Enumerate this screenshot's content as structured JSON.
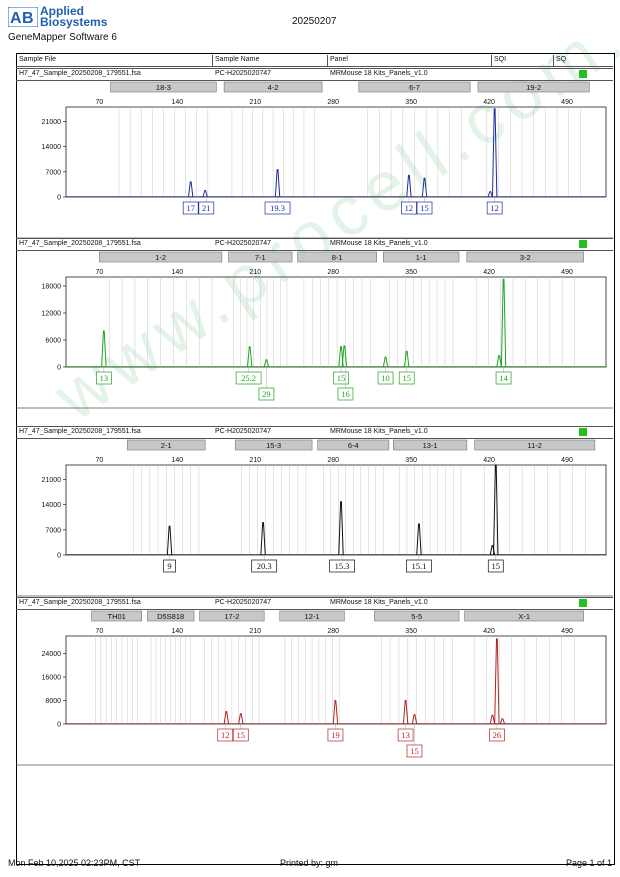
{
  "header": {
    "brand_line1": "Applied",
    "brand_line2": "Biosystems",
    "software": "GeneMapper Software 6",
    "run_date": "20250207"
  },
  "columns": [
    "Sample File",
    "Sample Name",
    "Panel",
    "SQI",
    "SQ"
  ],
  "footer": {
    "printed_at": "Mon Feb 10,2025 02:23PM, CST",
    "printed_by": "Printed by: gm",
    "page": "Page 1 of 1"
  },
  "watermark": "www.procell.com.cn",
  "colors": {
    "blue": "#1f2d9a",
    "green": "#1ea31e",
    "black": "#111111",
    "red": "#b32424",
    "sq_ok": "#22c022"
  },
  "chart_data": [
    {
      "type": "line",
      "sample_file": "H7_47_Sample_20250208_179551.fsa",
      "sample_name": "PC-H2025020747",
      "panel": "MRMouse 18 Kits_Panels_v1.0",
      "color": "#1f2d9a",
      "xlim": [
        40,
        525
      ],
      "x_ticks": [
        70,
        140,
        210,
        280,
        350,
        420,
        490
      ],
      "ylim": [
        0,
        25000
      ],
      "y_ticks": [
        0,
        7000,
        14000,
        21000
      ],
      "markers": [
        {
          "label": "18-3",
          "x0": 80,
          "x1": 175
        },
        {
          "label": "4-2",
          "x0": 182,
          "x1": 270
        },
        {
          "label": "6-7",
          "x0": 303,
          "x1": 403
        },
        {
          "label": "19-2",
          "x0": 410,
          "x1": 510
        }
      ],
      "peaks": [
        {
          "x": 152,
          "h": 4200
        },
        {
          "x": 165,
          "h": 1800
        },
        {
          "x": 230,
          "h": 7600
        },
        {
          "x": 348,
          "h": 6000
        },
        {
          "x": 362,
          "h": 5200
        },
        {
          "x": 425,
          "h": 24500
        },
        {
          "x": 421,
          "h": 1500
        }
      ],
      "alleles": [
        {
          "label": "17",
          "x": 152,
          "row": 0
        },
        {
          "label": "21",
          "x": 166,
          "row": 0
        },
        {
          "label": "19.3",
          "x": 230,
          "row": 0
        },
        {
          "label": "12",
          "x": 348,
          "row": 0
        },
        {
          "label": "15",
          "x": 362,
          "row": 0
        },
        {
          "label": "12",
          "x": 425,
          "row": 0
        }
      ]
    },
    {
      "type": "line",
      "sample_file": "H7_47_Sample_20250208_179551.fsa",
      "sample_name": "PC-H2025020747",
      "panel": "MRMouse 18 Kits_Panels_v1.0",
      "color": "#1ea31e",
      "xlim": [
        40,
        525
      ],
      "x_ticks": [
        70,
        140,
        210,
        280,
        350,
        420,
        490
      ],
      "ylim": [
        0,
        20000
      ],
      "y_ticks": [
        0,
        6000,
        12000,
        18000
      ],
      "markers": [
        {
          "label": "1-2",
          "x0": 70,
          "x1": 180
        },
        {
          "label": "7-1",
          "x0": 186,
          "x1": 243
        },
        {
          "label": "8-1",
          "x0": 248,
          "x1": 319
        },
        {
          "label": "1-1",
          "x0": 325,
          "x1": 393
        },
        {
          "label": "3-2",
          "x0": 400,
          "x1": 505
        }
      ],
      "peaks": [
        {
          "x": 74,
          "h": 8000
        },
        {
          "x": 205,
          "h": 4500
        },
        {
          "x": 220,
          "h": 1600
        },
        {
          "x": 287,
          "h": 4500
        },
        {
          "x": 290,
          "h": 4700
        },
        {
          "x": 327,
          "h": 2200
        },
        {
          "x": 346,
          "h": 3500
        },
        {
          "x": 433,
          "h": 19500
        },
        {
          "x": 429,
          "h": 2500
        }
      ],
      "alleles": [
        {
          "label": "13",
          "x": 74,
          "row": 0
        },
        {
          "label": "25.2",
          "x": 204,
          "row": 0
        },
        {
          "label": "29",
          "x": 220,
          "row": 1
        },
        {
          "label": "15",
          "x": 287,
          "row": 0
        },
        {
          "label": "16",
          "x": 291,
          "row": 1
        },
        {
          "label": "10",
          "x": 327,
          "row": 0
        },
        {
          "label": "15",
          "x": 346,
          "row": 0
        },
        {
          "label": "14",
          "x": 433,
          "row": 0
        }
      ]
    },
    {
      "type": "line",
      "sample_file": "H7_47_Sample_20250208_179551.fsa",
      "sample_name": "PC-H2025020747",
      "panel": "MRMouse 18 Kits_Panels_v1.0",
      "color": "#111111",
      "xlim": [
        40,
        525
      ],
      "x_ticks": [
        70,
        140,
        210,
        280,
        350,
        420,
        490
      ],
      "ylim": [
        0,
        25000
      ],
      "y_ticks": [
        0,
        7000,
        14000,
        21000
      ],
      "markers": [
        {
          "label": "2-1",
          "x0": 95,
          "x1": 165
        },
        {
          "label": "15-3",
          "x0": 192,
          "x1": 261
        },
        {
          "label": "6-4",
          "x0": 266,
          "x1": 330
        },
        {
          "label": "13-1",
          "x0": 334,
          "x1": 400
        },
        {
          "label": "11-2",
          "x0": 407,
          "x1": 515
        }
      ],
      "peaks": [
        {
          "x": 133,
          "h": 8000
        },
        {
          "x": 217,
          "h": 9000
        },
        {
          "x": 287,
          "h": 14800
        },
        {
          "x": 357,
          "h": 8600
        },
        {
          "x": 426,
          "h": 25000
        },
        {
          "x": 423,
          "h": 2600
        }
      ],
      "alleles": [
        {
          "label": "9",
          "x": 133,
          "row": 0
        },
        {
          "label": "20.3",
          "x": 218,
          "row": 0
        },
        {
          "label": "15.3",
          "x": 288,
          "row": 0
        },
        {
          "label": "15.1",
          "x": 357,
          "row": 0
        },
        {
          "label": "15",
          "x": 426,
          "row": 0
        }
      ]
    },
    {
      "type": "line",
      "sample_file": "H7_47_Sample_20250208_179551.fsa",
      "sample_name": "PC-H2025020747",
      "panel": "MRMouse 18 Kits_Panels_v1.0",
      "color": "#b32424",
      "xlim": [
        40,
        525
      ],
      "x_ticks": [
        70,
        140,
        210,
        280,
        350,
        420,
        490
      ],
      "ylim": [
        0,
        30000
      ],
      "y_ticks": [
        0,
        8000,
        16000,
        24000
      ],
      "markers": [
        {
          "label": "TH01",
          "x0": 63,
          "x1": 108
        },
        {
          "label": "D5S818",
          "x0": 113,
          "x1": 155
        },
        {
          "label": "17-2",
          "x0": 160,
          "x1": 218
        },
        {
          "label": "12-1",
          "x0": 232,
          "x1": 290
        },
        {
          "label": "5-5",
          "x0": 317,
          "x1": 393
        },
        {
          "label": "X-1",
          "x0": 398,
          "x1": 505
        }
      ],
      "peaks": [
        {
          "x": 184,
          "h": 4200
        },
        {
          "x": 197,
          "h": 3500
        },
        {
          "x": 282,
          "h": 8000
        },
        {
          "x": 345,
          "h": 8000
        },
        {
          "x": 353,
          "h": 3200
        },
        {
          "x": 427,
          "h": 29000
        },
        {
          "x": 423,
          "h": 3000
        },
        {
          "x": 432,
          "h": 1800
        }
      ],
      "alleles": [
        {
          "label": "12",
          "x": 183,
          "row": 0
        },
        {
          "label": "15",
          "x": 197,
          "row": 0
        },
        {
          "label": "19",
          "x": 282,
          "row": 0
        },
        {
          "label": "13",
          "x": 345,
          "row": 0
        },
        {
          "label": "15",
          "x": 353,
          "row": 1
        },
        {
          "label": "26",
          "x": 427,
          "row": 0
        }
      ]
    }
  ]
}
